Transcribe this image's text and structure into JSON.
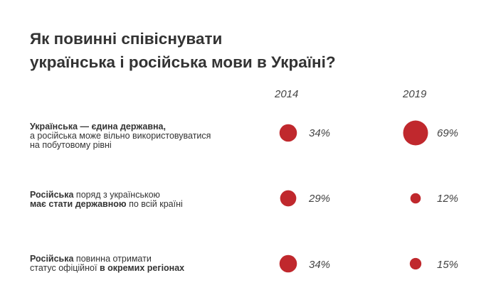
{
  "title": {
    "line1": "Як повинні співіснувати",
    "line2": "українська і російська мови в Україні?"
  },
  "chart_data": {
    "type": "bubble-table",
    "title": "Як повинні співіснувати українська і російська мови в Україні?",
    "columns": [
      "2014",
      "2019"
    ],
    "rows": [
      {
        "label_line1_bold": "Українська — єдина державна,",
        "label_line2": "а російська може вільно використовуватися",
        "label_line3": "на побутовому рівні",
        "values": [
          34,
          69
        ],
        "value_labels": [
          "34%",
          "69%"
        ]
      },
      {
        "label_line1_bold": "Російська",
        "label_line1_rest": " поряд з українською",
        "label_line2_bold": "має стати державною",
        "label_line2_rest": " по всій країні",
        "values": [
          29,
          12
        ],
        "value_labels": [
          "29%",
          "12%"
        ]
      },
      {
        "label_line1_bold": "Російська",
        "label_line1_rest": " повинна отримати",
        "label_line2_start": "статус офіційної ",
        "label_line2_bold": "в окремих регіонах",
        "values": [
          34,
          15
        ],
        "value_labels": [
          "34%",
          "15%"
        ]
      }
    ],
    "unit": "%",
    "bubble_color": "#c0282d"
  }
}
